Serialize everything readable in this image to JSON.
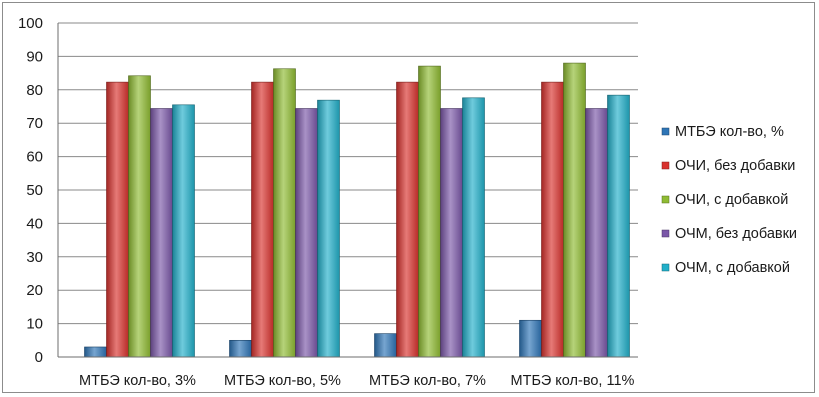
{
  "chart_data": {
    "type": "bar",
    "categories": [
      "МТБЭ кол-во, 3%",
      "МТБЭ кол-во, 5%",
      "МТБЭ кол-во, 7%",
      "МТБЭ кол-во, 11%"
    ],
    "series": [
      {
        "name": "МТБЭ кол-во, %",
        "values": [
          3,
          5,
          7,
          11
        ],
        "color": "#2e75b6"
      },
      {
        "name": "ОЧИ, без добавки",
        "values": [
          82.3,
          82.3,
          82.3,
          82.3
        ],
        "color": "#d9322e"
      },
      {
        "name": "ОЧИ, с добавкой",
        "values": [
          84.2,
          86.3,
          87.1,
          88
        ],
        "color": "#8fbb33"
      },
      {
        "name": "ОЧМ, без добавки",
        "values": [
          74.4,
          74.4,
          74.4,
          74.4
        ],
        "color": "#7a57a8"
      },
      {
        "name": "ОЧМ, с добавкой",
        "values": [
          75.5,
          76.9,
          77.6,
          78.4
        ],
        "color": "#22afc9"
      }
    ],
    "ylim": [
      0,
      100
    ],
    "yticks": [
      0,
      10,
      20,
      30,
      40,
      50,
      60,
      70,
      80,
      90,
      100
    ],
    "grid": true,
    "legend_position": "right"
  }
}
